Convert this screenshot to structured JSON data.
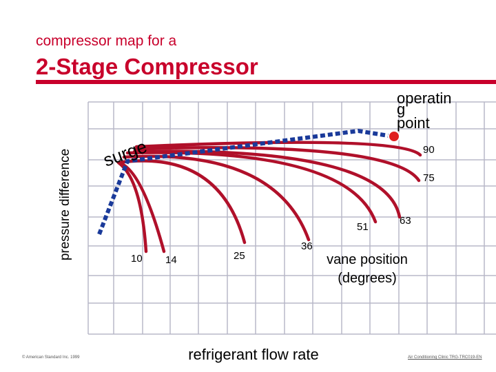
{
  "header": {
    "subtitle": "compressor map for a",
    "title": "2-Stage Compressor"
  },
  "diagram": {
    "y_axis_label": "pressure difference",
    "x_axis_label": "refrigerant flow rate",
    "surge_label": "surge",
    "operating_point_label": [
      "operatin",
      "g",
      "point"
    ],
    "vane_position_label": [
      "vane position",
      "(degrees)"
    ],
    "vane_angles": [
      "10",
      "14",
      "25",
      "36",
      "51",
      "63",
      "75",
      "90"
    ],
    "colors": {
      "curve": "#b0102a",
      "surge_line": "#1a3a9a",
      "grid": "#b8b8c8",
      "operating_point": "#e02020",
      "title": "#c8002b"
    }
  },
  "footer": {
    "left": "© American Standard Inc. 1999",
    "right": "Air Conditioning Clinic TRG-TRC019-EN"
  }
}
